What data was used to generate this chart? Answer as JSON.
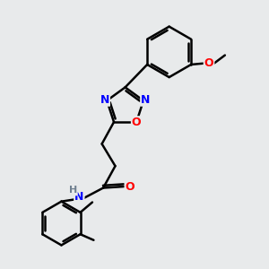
{
  "bg_color": "#e8eaeb",
  "bond_color": "#000000",
  "atom_colors": {
    "N": "#0000ff",
    "O": "#ff0000",
    "H": "#708090",
    "C": "#000000"
  },
  "bond_width": 1.8,
  "figsize": [
    3.0,
    3.0
  ],
  "dpi": 100,
  "xlim": [
    0,
    10
  ],
  "ylim": [
    0,
    10
  ]
}
